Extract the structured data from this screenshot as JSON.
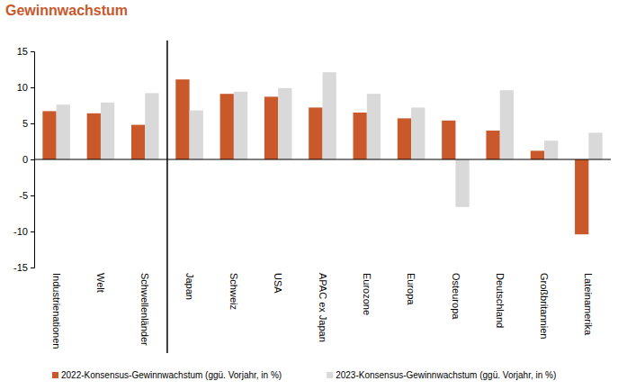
{
  "chart_data": {
    "type": "bar",
    "title": "Gewinnwachstum",
    "categories": [
      "Industrienationen",
      "Welt",
      "Schwellenländer",
      "Japan",
      "Schweiz",
      "USA",
      "APAC ex Japan",
      "Eurozone",
      "Europa",
      "Osteuropa",
      "Deutschland",
      "Großbritannien",
      "Lateinamerika"
    ],
    "series": [
      {
        "name": "2022-Konsensus-Gewinnwachstum (ggü. Vorjahr, in %)",
        "color": "#c9582b",
        "values": [
          6.7,
          6.4,
          4.8,
          11.1,
          9.1,
          8.7,
          7.2,
          6.5,
          5.7,
          5.4,
          4.0,
          1.2,
          -10.4
        ]
      },
      {
        "name": "2023-Konsensus-Gewinnwachstum (ggü. Vorjahr, in %)",
        "color": "#d9d9d9",
        "values": [
          7.6,
          7.9,
          9.2,
          6.8,
          9.4,
          9.9,
          12.1,
          9.1,
          7.2,
          -6.6,
          9.6,
          2.6,
          3.7
        ]
      }
    ],
    "ylim": [
      -15,
      15
    ],
    "yticks": [
      -15,
      -10,
      -5,
      0,
      5,
      10,
      15
    ],
    "grid": false,
    "legend": "bottom"
  }
}
